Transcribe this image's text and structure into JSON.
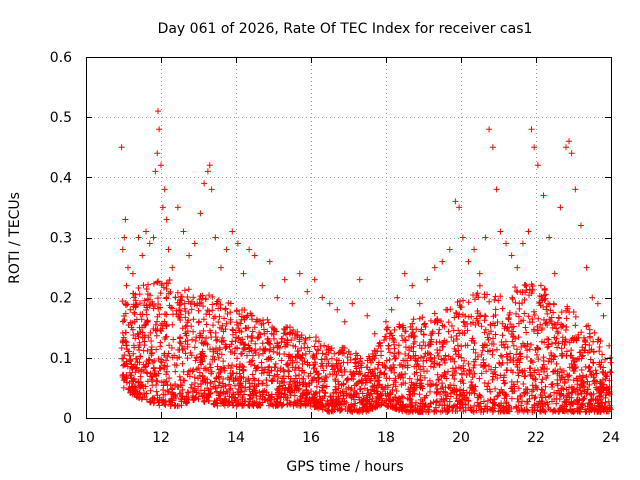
{
  "chart_data": {
    "type": "scatter",
    "title": "Day 061 of 2026, Rate Of TEC Index for receiver cas1",
    "xlabel": "GPS time / hours",
    "ylabel": "ROTI / TECUs",
    "xlim": [
      10,
      24
    ],
    "ylim": [
      0,
      0.6
    ],
    "xticks": [
      10,
      12,
      14,
      16,
      18,
      20,
      22,
      24
    ],
    "yticks": [
      0,
      0.1,
      0.2,
      0.3,
      0.4,
      0.5,
      0.6
    ],
    "xtick_labels": [
      "10",
      "12",
      "14",
      "16",
      "18",
      "20",
      "22",
      "24"
    ],
    "ytick_labels": [
      "0",
      "0.1",
      "0.2",
      "0.3",
      "0.4",
      "0.5",
      "0.6"
    ],
    "grid": true,
    "marker": "+",
    "color": "#ff0000",
    "series": [
      {
        "name": "ROTI",
        "x": [
          10.95,
          10.98,
          11.02,
          11.05,
          11.08,
          11.12,
          11.18,
          11.25,
          11.3,
          11.4,
          11.5,
          11.6,
          11.7,
          11.8,
          11.85,
          11.9,
          11.92,
          11.95,
          12.0,
          12.05,
          12.1,
          12.15,
          12.2,
          12.3,
          12.45,
          12.6,
          12.75,
          12.9,
          13.05,
          13.15,
          13.25,
          13.3,
          13.35,
          13.45,
          13.6,
          13.75,
          13.9,
          14.05,
          14.2,
          14.35,
          14.5,
          14.7,
          14.9,
          15.1,
          15.3,
          15.5,
          15.7,
          15.9,
          16.1,
          16.3,
          16.5,
          16.7,
          16.9,
          17.1,
          17.3,
          17.5,
          17.7,
          17.85,
          18.0,
          18.15,
          18.3,
          18.5,
          18.7,
          18.9,
          19.1,
          19.3,
          19.5,
          19.7,
          19.85,
          19.95,
          20.05,
          20.2,
          20.35,
          20.5,
          20.65,
          20.75,
          20.85,
          20.95,
          21.05,
          21.2,
          21.35,
          21.5,
          21.65,
          21.8,
          21.88,
          21.95,
          22.05,
          22.2,
          22.35,
          22.5,
          22.65,
          22.8,
          22.88,
          22.95,
          23.05,
          23.2,
          23.35,
          23.5,
          23.65,
          23.8,
          23.95
        ],
        "y": [
          0.45,
          0.28,
          0.3,
          0.33,
          0.22,
          0.25,
          0.18,
          0.24,
          0.16,
          0.3,
          0.27,
          0.31,
          0.29,
          0.3,
          0.41,
          0.44,
          0.51,
          0.48,
          0.42,
          0.35,
          0.38,
          0.33,
          0.28,
          0.25,
          0.35,
          0.31,
          0.27,
          0.29,
          0.34,
          0.39,
          0.41,
          0.42,
          0.38,
          0.3,
          0.25,
          0.28,
          0.31,
          0.29,
          0.24,
          0.28,
          0.27,
          0.22,
          0.26,
          0.2,
          0.23,
          0.19,
          0.24,
          0.21,
          0.23,
          0.2,
          0.19,
          0.18,
          0.16,
          0.19,
          0.23,
          0.17,
          0.14,
          0.12,
          0.16,
          0.18,
          0.2,
          0.24,
          0.22,
          0.19,
          0.23,
          0.25,
          0.26,
          0.28,
          0.36,
          0.35,
          0.3,
          0.26,
          0.28,
          0.24,
          0.3,
          0.48,
          0.45,
          0.38,
          0.31,
          0.29,
          0.27,
          0.25,
          0.29,
          0.31,
          0.48,
          0.45,
          0.42,
          0.37,
          0.3,
          0.24,
          0.35,
          0.45,
          0.46,
          0.44,
          0.38,
          0.32,
          0.25,
          0.2,
          0.19,
          0.17,
          0.12
        ],
        "dense_band": {
          "x": [
            10.95,
            11.5,
            12.0,
            12.5,
            13.0,
            13.5,
            14.0,
            14.5,
            15.0,
            15.5,
            16.0,
            16.5,
            17.0,
            17.5,
            17.8,
            18.0,
            18.5,
            19.0,
            19.5,
            20.0,
            20.5,
            21.0,
            21.5,
            22.0,
            22.5,
            23.0,
            23.5,
            24.0
          ],
          "y_low": [
            0.05,
            0.03,
            0.02,
            0.02,
            0.03,
            0.02,
            0.02,
            0.02,
            0.02,
            0.02,
            0.02,
            0.01,
            0.01,
            0.01,
            0.02,
            0.02,
            0.01,
            0.01,
            0.01,
            0.01,
            0.01,
            0.01,
            0.01,
            0.01,
            0.01,
            0.01,
            0.01,
            0.01
          ],
          "y_high": [
            0.2,
            0.22,
            0.24,
            0.22,
            0.21,
            0.2,
            0.19,
            0.17,
            0.16,
            0.15,
            0.14,
            0.12,
            0.12,
            0.1,
            0.12,
            0.15,
            0.16,
            0.17,
            0.18,
            0.2,
            0.22,
            0.21,
            0.22,
            0.23,
            0.2,
            0.18,
            0.15,
            0.1
          ],
          "count": 3200
        }
      }
    ]
  }
}
